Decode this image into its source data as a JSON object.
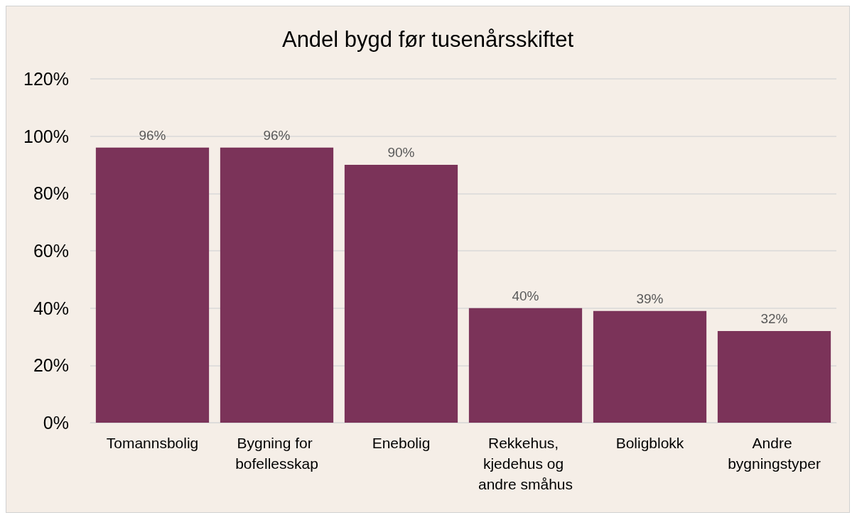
{
  "chart_data": {
    "type": "bar",
    "title": "Andel bygd før tusenårsskiftet",
    "categories": [
      "Tomannsbolig",
      "Bygning for bofellesskap",
      "Enebolig",
      "Rekkehus, kjedehus og andre småhus",
      "Boligblokk",
      "Andre bygningstyper"
    ],
    "values": [
      96,
      96,
      90,
      40,
      39,
      32
    ],
    "value_labels": [
      "96%",
      "96%",
      "90%",
      "40%",
      "39%",
      "32%"
    ],
    "color": "#7b3359",
    "ylim": [
      0,
      120
    ],
    "yticks": [
      {
        "value": 0,
        "label": "0%"
      },
      {
        "value": 20,
        "label": "20%"
      },
      {
        "value": 40,
        "label": "40%"
      },
      {
        "value": 60,
        "label": "60%"
      },
      {
        "value": 80,
        "label": "80%"
      },
      {
        "value": 100,
        "label": "100%"
      },
      {
        "value": 120,
        "label": "120%"
      }
    ],
    "grid": "y"
  }
}
